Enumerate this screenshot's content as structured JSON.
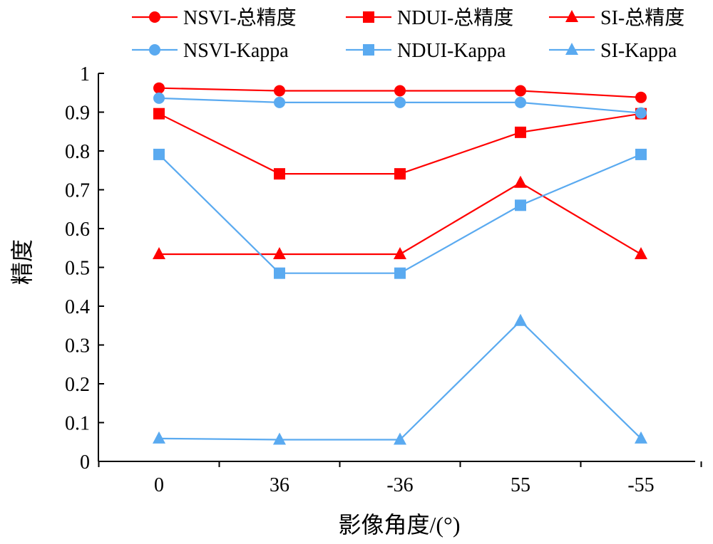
{
  "chart_data": {
    "type": "line",
    "title": "",
    "xlabel": "影像角度/(°)",
    "ylabel": "精度",
    "categories": [
      "0",
      "36",
      "-36",
      "55",
      "-55"
    ],
    "ylim": [
      0,
      1
    ],
    "yticks": [
      "0",
      "0.1",
      "0.2",
      "0.3",
      "0.4",
      "0.5",
      "0.6",
      "0.7",
      "0.8",
      "0.9",
      "1"
    ],
    "grid": false,
    "legend_position": "top",
    "series": [
      {
        "name": "NSVI-总精度",
        "marker": "circle",
        "color": "#ff0000",
        "values": [
          0.962,
          0.955,
          0.955,
          0.955,
          0.938
        ]
      },
      {
        "name": "NDUI-总精度",
        "marker": "square",
        "color": "#ff0000",
        "values": [
          0.896,
          0.741,
          0.741,
          0.848,
          0.896
        ]
      },
      {
        "name": "SI-总精度",
        "marker": "triangle",
        "color": "#ff0000",
        "values": [
          0.534,
          0.534,
          0.534,
          0.718,
          0.534
        ]
      },
      {
        "name": "NSVI-Kappa",
        "marker": "circle",
        "color": "#5aaaf0",
        "values": [
          0.936,
          0.925,
          0.925,
          0.925,
          0.898
        ]
      },
      {
        "name": "NDUI-Kappa",
        "marker": "square",
        "color": "#5aaaf0",
        "values": [
          0.791,
          0.485,
          0.485,
          0.66,
          0.791
        ]
      },
      {
        "name": "SI-Kappa",
        "marker": "triangle",
        "color": "#5aaaf0",
        "values": [
          0.059,
          0.056,
          0.056,
          0.362,
          0.059
        ]
      }
    ]
  }
}
